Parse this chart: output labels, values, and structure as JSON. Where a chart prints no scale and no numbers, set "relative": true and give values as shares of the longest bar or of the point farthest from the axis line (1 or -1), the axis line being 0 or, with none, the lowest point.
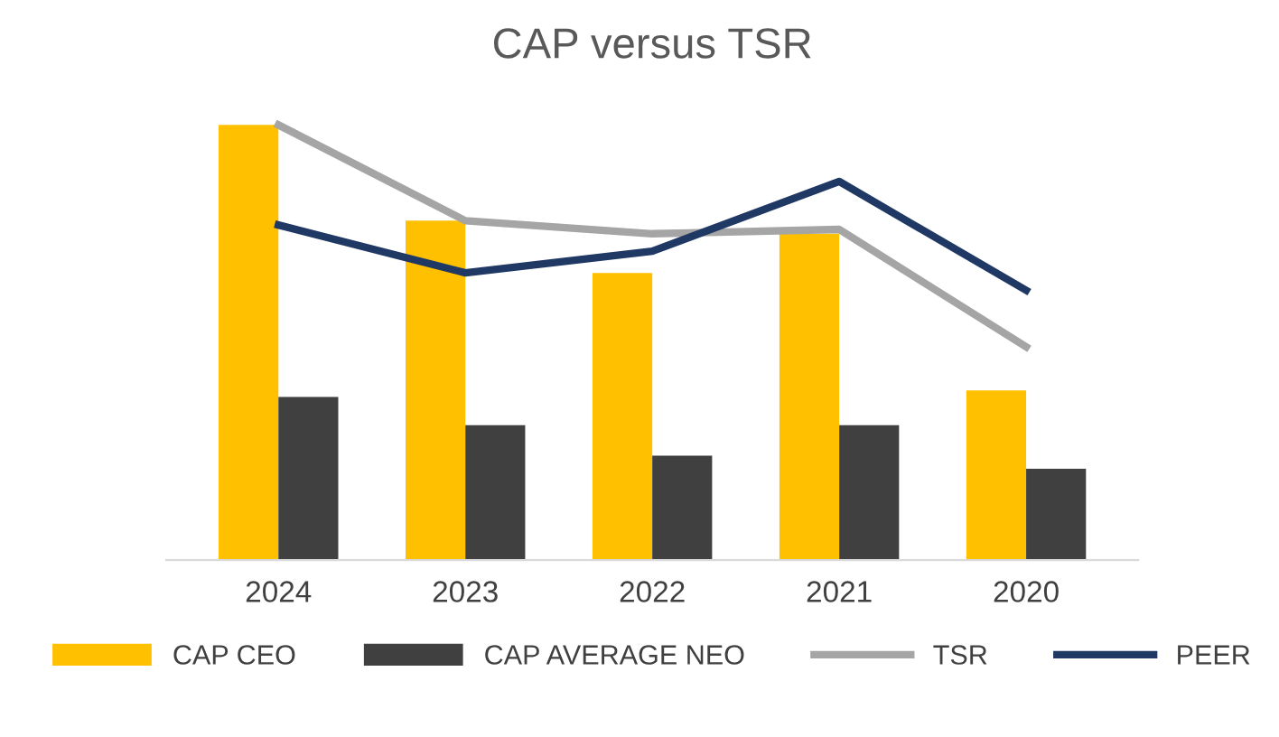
{
  "chart_data": {
    "type": "bar",
    "title": "CAP versus TSR",
    "relative": true,
    "categories": [
      "2024",
      "2023",
      "2022",
      "2021",
      "2020"
    ],
    "series": [
      {
        "name": "CAP CEO",
        "color": "#ffc000",
        "values": [
          1.0,
          0.78,
          0.66,
          0.75,
          0.39
        ]
      },
      {
        "name": "CAP AVERAGE NEO",
        "color": "#404040",
        "values": [
          0.375,
          0.31,
          0.24,
          0.31,
          0.21
        ]
      },
      {
        "name": "TSR",
        "type": "line",
        "color": "#a5a5a5",
        "values": [
          1.0,
          0.78,
          0.75,
          0.76,
          0.49
        ]
      },
      {
        "name": "PEER",
        "type": "line",
        "color": "#203864",
        "values": [
          0.77,
          0.66,
          0.71,
          0.87,
          0.62
        ]
      }
    ],
    "legend": "bottom",
    "grid": false,
    "marker": "none",
    "line_style": "solid"
  }
}
